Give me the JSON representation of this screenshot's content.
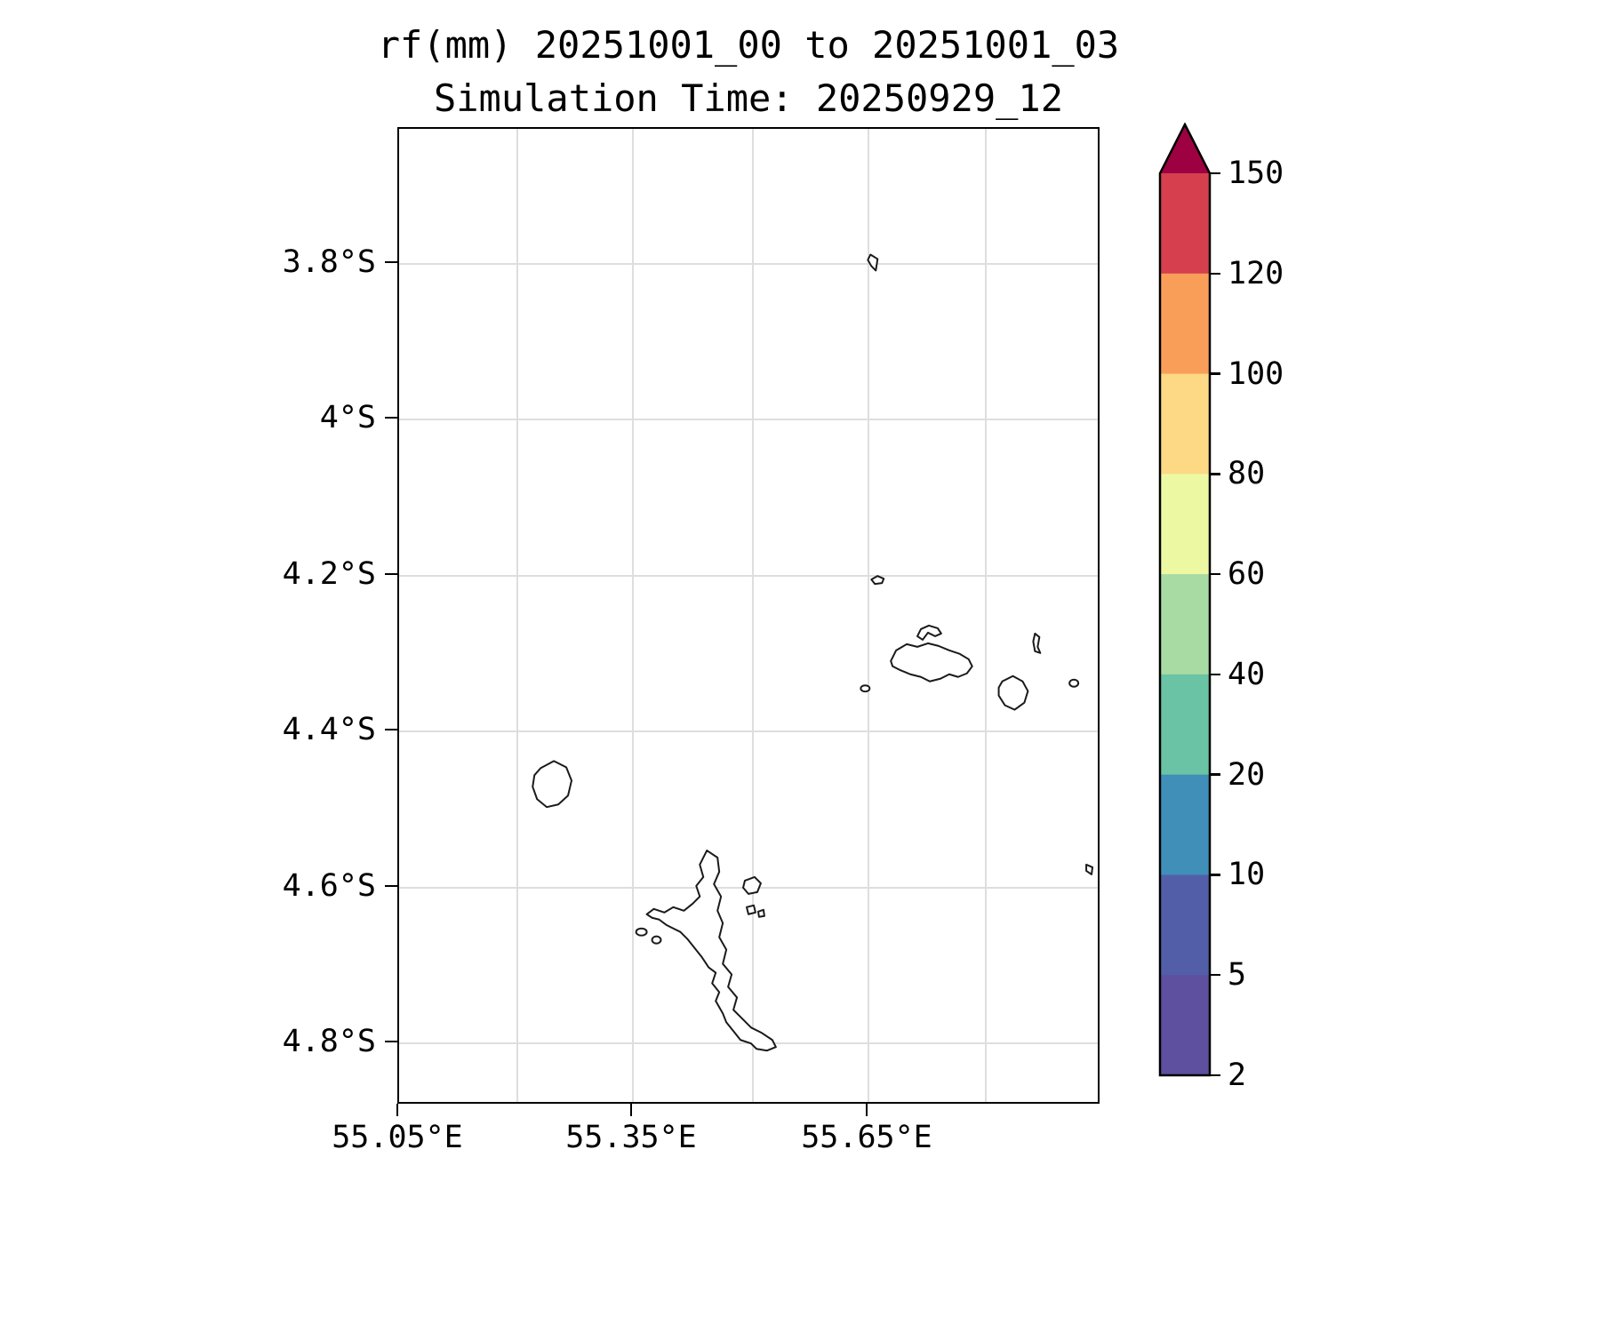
{
  "title": "rf(mm) 20251001_00 to 20251001_03",
  "subtitle": "Simulation Time: 20250929_12",
  "axes": {
    "x_tick_labels": [
      "55.05°E",
      "55.35°E",
      "55.65°E"
    ],
    "y_tick_labels": [
      "3.8°S",
      "4°S",
      "4.2°S",
      "4.4°S",
      "4.6°S",
      "4.8°S"
    ]
  },
  "colorbar": {
    "tick_labels_top_to_bottom": [
      "150",
      "120",
      "100",
      "80",
      "60",
      "40",
      "20",
      "10",
      "5",
      "2"
    ],
    "segment_colors_bottom_to_top": [
      "#5e509f",
      "#525fa8",
      "#3f8fb9",
      "#6ac3a5",
      "#a8dba3",
      "#edf8a3",
      "#fdd985",
      "#f99e59",
      "#d6404e"
    ],
    "over_color": "#9e0142",
    "outline_color": "#000000"
  },
  "map": {
    "background_color": "#ffffff",
    "coastline_color": "#1a1a1a",
    "gridline_color": "#dedede"
  },
  "chart_data": {
    "type": "heatmap",
    "subtype": "filled-contour rainfall map with coastline overlay and colorbar",
    "title": "rf(mm) 20251001_00 to 20251001_03",
    "subtitle": "Simulation Time: 20250929_12",
    "variable": "rf",
    "units": "mm",
    "x_tick_labels": [
      "55.05°E",
      "55.35°E",
      "55.65°E"
    ],
    "y_tick_labels": [
      "3.8°S",
      "4°S",
      "4.2°S",
      "4.4°S",
      "4.6°S",
      "4.8°S"
    ],
    "color_levels": [
      2,
      5,
      10,
      20,
      40,
      60,
      80,
      100,
      120,
      150
    ],
    "colorbar_over_value": "above 150 (arrow cap)",
    "values_shown": "no filled rainfall contours visible; entire displayed domain below lowest level (2 mm)",
    "overlays": [
      "island coastline outlines"
    ],
    "grid": true,
    "legend_position": "vertical colorbar at right"
  }
}
